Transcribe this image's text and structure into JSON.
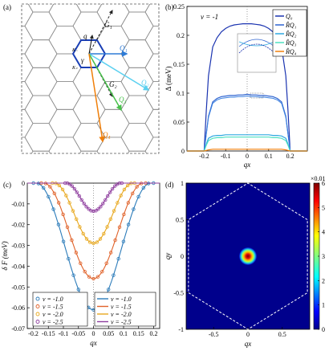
{
  "panels": {
    "a": {
      "label": "(a)"
    },
    "b": {
      "label": "(b)"
    },
    "c": {
      "label": "(c)"
    },
    "d": {
      "label": "(d)"
    }
  },
  "panel_a": {
    "vector_labels": [
      "G₁",
      "G₂",
      "Q₁",
      "Q₂",
      "Q₃",
      "Q₄",
      "q",
      "γ",
      "K₋",
      "K₊"
    ],
    "colors": {
      "Q1": "#2e7bd6",
      "Q2": "#5ad0f0",
      "Q3": "#47c04a",
      "Q4": "#f07f0a",
      "hex": "#1a3fb5"
    }
  },
  "chart_data": [
    {
      "panel": "b",
      "type": "line",
      "annotation": "ν = -1",
      "xlabel": "q_x",
      "ylabel": "Δ (meV)",
      "xlim": [
        -0.28,
        0.28
      ],
      "ylim": [
        0,
        0.25
      ],
      "xticks": [
        "-0.2",
        "-0.1",
        "0",
        "0.1",
        "0.2"
      ],
      "yticks": [
        "0",
        "0.05",
        "0.1",
        "0.15",
        "0.2",
        "0.25"
      ],
      "legend": {
        "placement": "top-right",
        "entries": [
          "Q₀",
          "R̂Q₁",
          "R̂Q₂",
          "R̂Q₃",
          "R̂Q₄"
        ]
      },
      "x": [
        -0.28,
        -0.2,
        -0.19,
        -0.18,
        -0.16,
        -0.14,
        -0.12,
        -0.1,
        -0.08,
        -0.06,
        -0.04,
        -0.02,
        0,
        0.02,
        0.04,
        0.06,
        0.08,
        0.1,
        0.12,
        0.14,
        0.16,
        0.18,
        0.19,
        0.2,
        0.28
      ],
      "series": [
        {
          "color": "#1a33b0",
          "values": [
            0,
            0,
            0.07,
            0.13,
            0.18,
            0.196,
            0.206,
            0.212,
            0.216,
            0.218,
            0.219,
            0.22,
            0.22,
            0.22,
            0.219,
            0.218,
            0.216,
            0.212,
            0.206,
            0.196,
            0.18,
            0.13,
            0.07,
            0,
            0
          ]
        },
        {
          "color": "#2e63d0",
          "values": [
            0,
            0,
            0.03,
            0.06,
            0.085,
            0.091,
            0.094,
            0.095,
            0.096,
            0.096,
            0.097,
            0.097,
            0.098,
            0.097,
            0.097,
            0.096,
            0.096,
            0.095,
            0.094,
            0.091,
            0.085,
            0.06,
            0.03,
            0,
            0
          ]
        },
        {
          "color": "#2ea8e0",
          "values": [
            0,
            0,
            0.012,
            0.022,
            0.026,
            0.027,
            0.027,
            0.028,
            0.028,
            0.028,
            0.028,
            0.028,
            0.028,
            0.028,
            0.028,
            0.028,
            0.028,
            0.028,
            0.027,
            0.027,
            0.026,
            0.022,
            0.012,
            0,
            0
          ]
        },
        {
          "color": "#4ce0c0",
          "values": [
            0,
            0,
            0.01,
            0.018,
            0.022,
            0.023,
            0.023,
            0.024,
            0.024,
            0.024,
            0.024,
            0.024,
            0.024,
            0.024,
            0.024,
            0.024,
            0.024,
            0.024,
            0.023,
            0.023,
            0.022,
            0.018,
            0.01,
            0,
            0
          ]
        },
        {
          "color": "#f07f0a",
          "values": [
            0,
            0,
            0.001,
            0.002,
            0.003,
            0.003,
            0.003,
            0.003,
            0.003,
            0.003,
            0.003,
            0.003,
            0.003,
            0.003,
            0.003,
            0.003,
            0.003,
            0.003,
            0.003,
            0.003,
            0.003,
            0.002,
            0.001,
            0,
            0
          ]
        }
      ]
    },
    {
      "panel": "c",
      "type": "line",
      "xlabel": "q_x",
      "ylabel": "δ F (meV)",
      "xlim": [
        -0.22,
        0.22
      ],
      "ylim": [
        -0.07,
        0
      ],
      "xticks": [
        "-0.2",
        "-0.15",
        "-0.1",
        "-0.05",
        "0",
        "0.05",
        "0.1",
        "0.15",
        "0.2"
      ],
      "yticks": [
        "-0.07",
        "-0.06",
        "-0.05",
        "-0.04",
        "-0.03",
        "-0.02",
        "-0.01",
        "0"
      ],
      "legend": {
        "placement": "bottom",
        "markers": [
          "ν = -1.0",
          "ν = -1.5",
          "ν = -2.0",
          "ν = -2.5"
        ],
        "lines": [
          "ν = -1.0",
          "ν = -1.5",
          "ν = -2.0",
          "ν = -2.5"
        ]
      },
      "series": [
        {
          "color": "#2b7bb9",
          "min": -0.061,
          "halfwidth": 0.19
        },
        {
          "color": "#e0622a",
          "min": -0.046,
          "halfwidth": 0.165
        },
        {
          "color": "#e8a81e",
          "min": -0.029,
          "halfwidth": 0.13
        },
        {
          "color": "#8e3d9e",
          "min": -0.0135,
          "halfwidth": 0.09
        }
      ]
    },
    {
      "panel": "d",
      "type": "heatmap",
      "xlabel": "q_x",
      "ylabel": "q_y",
      "xlim": [
        -0.9,
        0.9
      ],
      "ylim": [
        -1,
        1
      ],
      "xticks": [
        "-0.5",
        "0",
        "0.5"
      ],
      "yticks": [
        "-1",
        "-0.5",
        "0",
        "0.5",
        "1"
      ],
      "colorbar": {
        "label": "×0.01",
        "ticks": [
          "0",
          "1",
          "2",
          "3",
          "4",
          "5",
          "6"
        ],
        "range": [
          0,
          6
        ]
      },
      "peak": {
        "x": 0,
        "y": 0,
        "value": 6
      }
    }
  ]
}
